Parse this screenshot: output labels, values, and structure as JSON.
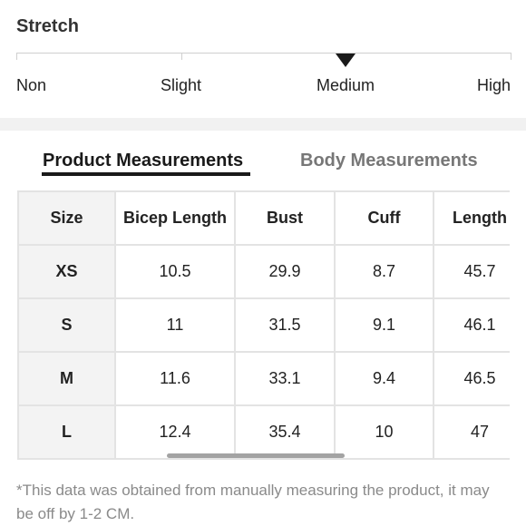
{
  "stretch": {
    "title": "Stretch",
    "levels": [
      "Non",
      "Slight",
      "Medium",
      "High"
    ],
    "selected": "Medium"
  },
  "tabs": [
    {
      "label": "Product Measurements",
      "active": true
    },
    {
      "label": "Body Measurements",
      "active": false
    }
  ],
  "table": {
    "headers": [
      "Size",
      "Bicep Length",
      "Bust",
      "Cuff",
      "Length"
    ],
    "rows": [
      [
        "XS",
        "10.5",
        "29.9",
        "8.7",
        "45.7"
      ],
      [
        "S",
        "11",
        "31.5",
        "9.1",
        "46.1"
      ],
      [
        "M",
        "11.6",
        "33.1",
        "9.4",
        "46.5"
      ],
      [
        "L",
        "12.4",
        "35.4",
        "10",
        "47"
      ]
    ]
  },
  "footnote": "*This data was obtained from manually measuring the product, it may be off by 1-2 CM."
}
